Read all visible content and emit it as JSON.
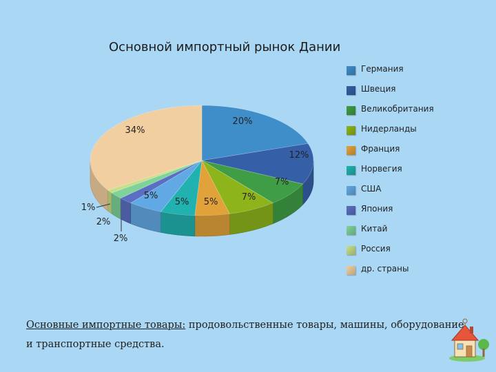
{
  "slide": {
    "caption_lead": "Основные импортные товары:",
    "caption_rest": " продовольственные товары, машины, оборудование и транспортные средства."
  },
  "chart_data": {
    "type": "pie",
    "title": "Основной импортный рынок Дании",
    "categories": [
      "Германия",
      "Швеция",
      "Великобритания",
      "Нидерланды",
      "Франция",
      "Норвегия",
      "США",
      "Япония",
      "Китай",
      "Россия",
      "др. страны"
    ],
    "values": [
      20,
      12,
      7,
      7,
      5,
      5,
      5,
      2,
      2,
      1,
      34
    ],
    "labels": [
      "20%",
      "12%",
      "7%",
      "7%",
      "5%",
      "5%",
      "5%",
      "2%",
      "2%",
      "1%",
      "34%"
    ],
    "colors": [
      "#3f8ec9",
      "#3560a8",
      "#3f9e45",
      "#8eb41c",
      "#e2a23a",
      "#21b2b0",
      "#61a9e4",
      "#5b6fc2",
      "#7fd39a",
      "#c7df87",
      "#f1cfa0"
    ],
    "legend_position": "right",
    "style": "3d"
  }
}
